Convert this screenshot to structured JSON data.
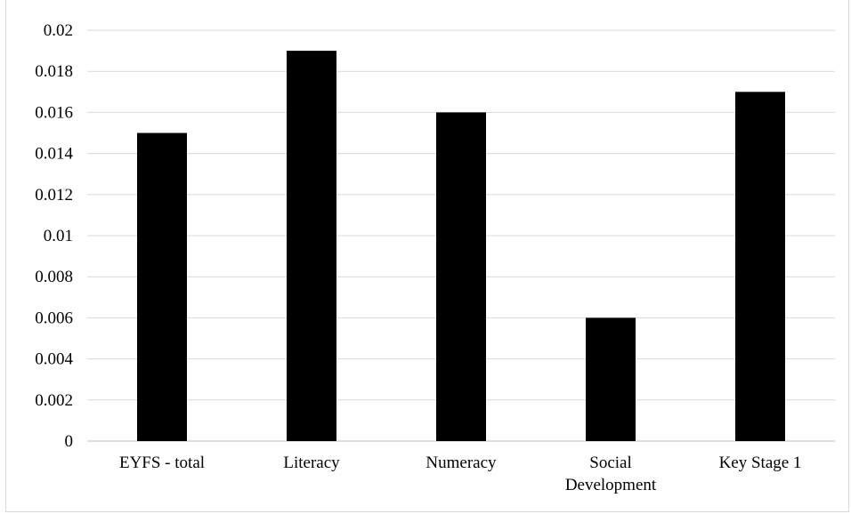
{
  "chart_data": {
    "type": "bar",
    "title": "",
    "xlabel": "",
    "ylabel": "",
    "categories": [
      "EYFS - total",
      "Literacy",
      "Numeracy",
      "Social\nDevelopment",
      "Key Stage 1"
    ],
    "values": [
      0.015,
      0.019,
      0.016,
      0.006,
      0.017
    ],
    "ylim": [
      0,
      0.02
    ],
    "yticks": [
      "0",
      "0.002",
      "0.004",
      "0.006",
      "0.008",
      "0.01",
      "0.012",
      "0.014",
      "0.016",
      "0.018",
      "0.02"
    ],
    "grid": true,
    "legend": "none",
    "bar_color": "#000000",
    "grid_color": "#d9d9d9"
  }
}
